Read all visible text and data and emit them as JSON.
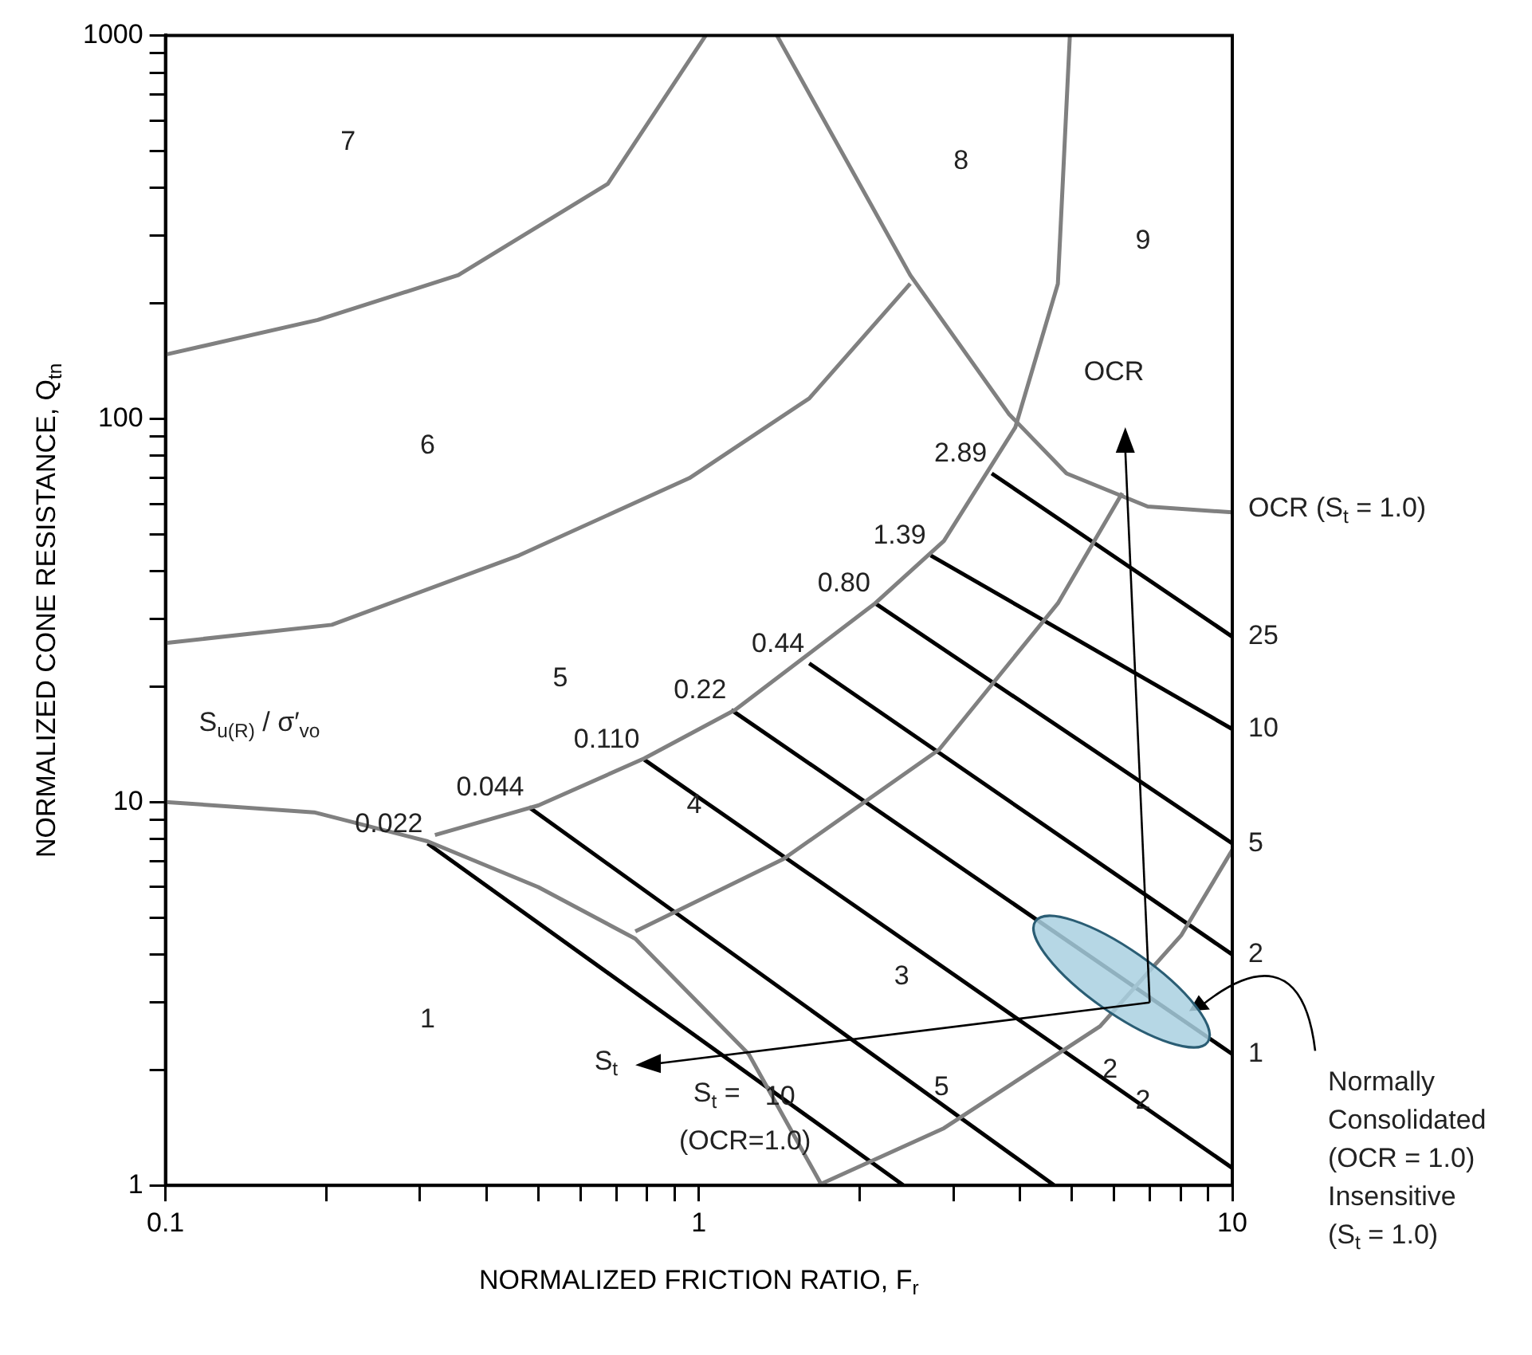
{
  "chart_data": {
    "type": "line",
    "xlabel": "NORMALIZED FRICTION RATIO, F$_{r}$",
    "ylabel": "NORMALIZED CONE RESISTANCE, Q$_{tn}$",
    "log": "xy",
    "xlim": [
      0.1,
      10
    ],
    "ylim": [
      1,
      1000
    ],
    "xticks": [
      0.1,
      {
        "value": 0.2,
        "label": null
      },
      {
        "value": 0.3,
        "label": null
      },
      {
        "value": 0.4,
        "label": null
      },
      {
        "value": 0.5,
        "label": null
      },
      {
        "value": 0.6,
        "label": null
      },
      {
        "value": 0.7,
        "label": null
      },
      {
        "value": 0.8,
        "label": null
      },
      {
        "value": 0.9,
        "label": null
      },
      1,
      {
        "value": 2,
        "label": null
      },
      {
        "value": 3,
        "label": null
      },
      {
        "value": 4,
        "label": null
      },
      {
        "value": 5,
        "label": null
      },
      {
        "value": 6,
        "label": null
      },
      {
        "value": 7,
        "label": null
      },
      {
        "value": 8,
        "label": null
      },
      {
        "value": 9,
        "label": null
      },
      10
    ],
    "yticks": [
      1,
      {
        "value": 2,
        "label": null
      },
      {
        "value": 3,
        "label": null
      },
      {
        "value": 4,
        "label": null
      },
      {
        "value": 5,
        "label": null
      },
      {
        "value": 6,
        "label": null
      },
      {
        "value": 7,
        "label": null
      },
      {
        "value": 8,
        "label": null
      },
      {
        "value": 9,
        "label": null
      },
      10,
      {
        "value": 20,
        "label": null
      },
      {
        "value": 30,
        "label": null
      },
      {
        "value": 40,
        "label": null
      },
      {
        "value": 50,
        "label": null
      },
      {
        "value": 60,
        "label": null
      },
      {
        "value": 70,
        "label": null
      },
      {
        "value": 80,
        "label": null
      },
      {
        "value": 90,
        "label": null
      },
      100,
      {
        "value": 200,
        "label": null
      },
      {
        "value": 300,
        "label": null
      },
      {
        "value": 400,
        "label": null
      },
      {
        "value": 500,
        "label": null
      },
      {
        "value": 600,
        "label": null
      },
      {
        "value": 700,
        "label": null
      },
      {
        "value": 800,
        "label": null
      },
      {
        "value": 900,
        "label": null
      },
      1000
    ],
    "grid": false,
    "legend": false,
    "marker": "none",
    "line_style": "solid",
    "series": [
      {
        "color": "#808080",
        "x": [
          0.1,
          0.19,
          0.31,
          0.5,
          0.76,
          1.24,
          1.7
        ],
        "values": [
          10,
          9.4,
          7.9,
          6.0,
          4.4,
          2.2,
          1
        ]
      },
      {
        "color": "#808080",
        "x": [
          0.76,
          1.44,
          2.82,
          4.71,
          6.22
        ],
        "values": [
          4.6,
          7.1,
          13.7,
          33,
          64
        ]
      },
      {
        "color": "#808080",
        "x": [
          1.67,
          2.88,
          5.65,
          8.03,
          10
        ],
        "values": [
          1,
          1.41,
          2.6,
          4.5,
          7.5
        ]
      },
      {
        "color": "#808080",
        "x": [
          0.32,
          0.5,
          0.79,
          1.17,
          2.14,
          2.88,
          3.92,
          4.71,
          4.96
        ],
        "values": [
          8.2,
          9.8,
          13,
          17.4,
          33,
          48,
          95,
          225,
          1000
        ]
      },
      {
        "color": "#808080",
        "x": [
          0.1,
          0.205,
          0.46,
          0.96,
          1.61,
          2.49
        ],
        "values": [
          26,
          29,
          44,
          70,
          113,
          225
        ]
      },
      {
        "color": "#808080",
        "x": [
          0.1,
          0.193,
          0.354,
          0.675,
          1.03
        ],
        "values": [
          147,
          181,
          237,
          410,
          1000
        ]
      },
      {
        "color": "#808080",
        "x": [
          1.4,
          2.49,
          3.81,
          4.89,
          6.94,
          10
        ],
        "values": [
          1000,
          237,
          103,
          72,
          59,
          57
        ]
      },
      {
        "color": "#000000",
        "x": [
          0.31,
          2.42
        ],
        "values": [
          7.8,
          1
        ]
      },
      {
        "color": "#000000",
        "x": [
          0.48,
          4.64
        ],
        "values": [
          9.7,
          1
        ]
      },
      {
        "color": "#000000",
        "x": [
          0.79,
          10
        ],
        "values": [
          12.9,
          1.11
        ]
      },
      {
        "color": "#000000",
        "x": [
          1.15,
          10
        ],
        "values": [
          17.4,
          2.2
        ]
      },
      {
        "color": "#000000",
        "x": [
          1.61,
          10
        ],
        "values": [
          23,
          4.0
        ]
      },
      {
        "color": "#000000",
        "x": [
          2.14,
          10
        ],
        "values": [
          33,
          7.8
        ]
      },
      {
        "color": "#000000",
        "x": [
          2.72,
          10
        ],
        "values": [
          44,
          15.5
        ]
      },
      {
        "color": "#000000",
        "x": [
          3.54,
          10
        ],
        "values": [
          72,
          27
        ]
      }
    ],
    "annotations": [
      "1",
      "2",
      "3",
      "4",
      "5",
      "6",
      "7",
      "8",
      "9",
      "S$_{u(R)}$ / σ′$_{vo}$",
      "OCR",
      "S$_{t}$",
      "S$_{t}$ =",
      "10",
      "(OCR=1.0)",
      "5",
      "2",
      "Normally\nConsolidated\n(OCR = 1.0)\nInsensitive\n(S$_{t}$ = 1.0)",
      {
        "text": "0.022",
        "x": 0.31,
        "y": 7.8
      },
      {
        "text": "0.044",
        "x": 0.48,
        "y": 9.7
      },
      {
        "text": "0.110",
        "x": 0.79,
        "y": 12.9
      },
      {
        "text": "0.22",
        "x": 1.15,
        "y": 17.4
      },
      {
        "text": "0.44",
        "x": 1.61,
        "y": 23
      },
      {
        "text": "0.80",
        "x": 2.14,
        "y": 33
      },
      {
        "text": "1.39",
        "x": 2.72,
        "y": 44
      },
      {
        "text": "2.89",
        "x": 3.54,
        "y": 72
      },
      {
        "text": "OCR (S$_{t}$ = 1.0)",
        "x": 10,
        "y": 58
      },
      {
        "text": "25",
        "x": 10,
        "y": 27
      },
      {
        "text": "10",
        "x": 10,
        "y": 15.5
      },
      {
        "text": "5",
        "x": 10,
        "y": 7.8
      },
      {
        "text": "2",
        "x": 10,
        "y": 4.0
      },
      {
        "text": "1",
        "x": 10,
        "y": 2.2
      }
    ]
  }
}
